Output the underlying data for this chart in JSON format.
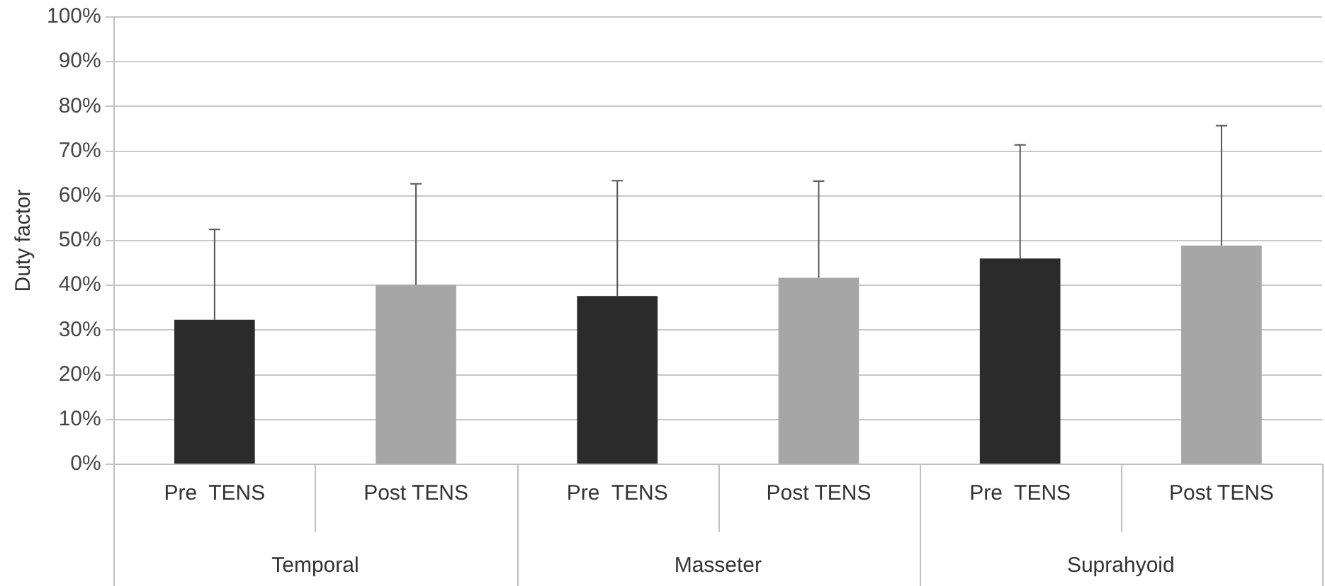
{
  "chart_data": {
    "type": "bar",
    "ylabel": "Duty factor",
    "categories": [
      "Pre  TENS",
      "Post TENS",
      "Pre  TENS",
      "Post TENS",
      "Pre  TENS",
      "Post TENS"
    ],
    "values": [
      32.3,
      40.1,
      37.6,
      41.7,
      46.0,
      48.9
    ],
    "colors": [
      "#2b2b2b",
      "#a6a6a6",
      "#2b2b2b",
      "#a6a6a6",
      "#2b2b2b",
      "#a6a6a6"
    ],
    "errors": [
      [
        32.3,
        52.5
      ],
      [
        40.1,
        62.7
      ],
      [
        37.6,
        63.4
      ],
      [
        41.7,
        63.3
      ],
      [
        46.0,
        71.4
      ],
      [
        48.9,
        75.7
      ]
    ],
    "annotations": [
      "Temporal",
      "Masseter",
      "Suprahyoid"
    ],
    "ylim": [
      0,
      100
    ],
    "yticks": [
      {
        "value": 0,
        "label": "0%"
      },
      {
        "value": 10,
        "label": "10%"
      },
      {
        "value": 20,
        "label": "20%"
      },
      {
        "value": 30,
        "label": "30%"
      },
      {
        "value": 40,
        "label": "40%"
      },
      {
        "value": 50,
        "label": "50%"
      },
      {
        "value": 60,
        "label": "60%"
      },
      {
        "value": 70,
        "label": "70%"
      },
      {
        "value": 80,
        "label": "80%"
      },
      {
        "value": 90,
        "label": "90%"
      },
      {
        "value": 100,
        "label": "100%"
      }
    ],
    "grid": "y",
    "legend": false
  }
}
